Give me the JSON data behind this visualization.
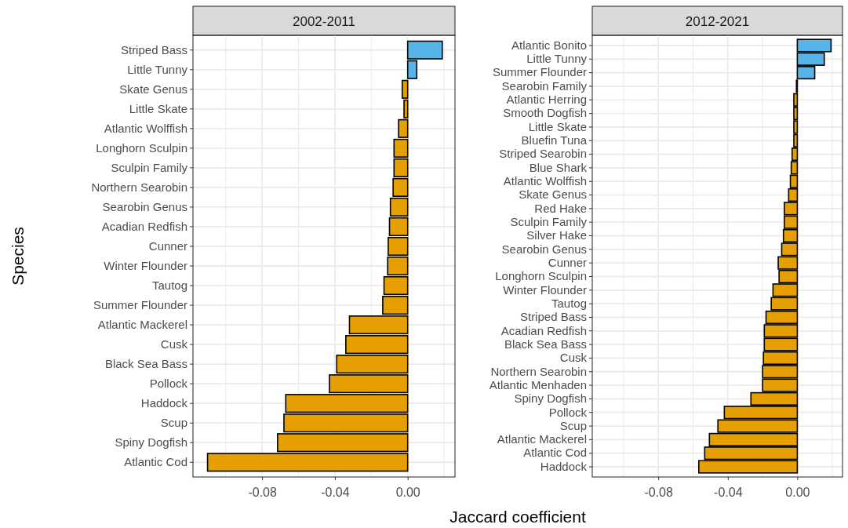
{
  "chart_data": [
    {
      "type": "bar",
      "orientation": "horizontal",
      "title": "2002-2011",
      "xlabel": "Jaccard coefficient",
      "ylabel": "Species",
      "categories": [
        "Striped Bass",
        "Little Tunny",
        "Skate Genus",
        "Little Skate",
        "Atlantic Wolffish",
        "Longhorn Sculpin",
        "Sculpin Family",
        "Northern Searobin",
        "Searobin Genus",
        "Acadian Redfish",
        "Cunner",
        "Winter Flounder",
        "Tautog",
        "Summer Flounder",
        "Atlantic Mackerel",
        "Cusk",
        "Black Sea Bass",
        "Pollock",
        "Haddock",
        "Scup",
        "Spiny Dogfish",
        "Atlantic Cod"
      ],
      "values": [
        0.019,
        0.005,
        -0.003,
        -0.002,
        -0.005,
        -0.0075,
        -0.0075,
        -0.008,
        -0.0095,
        -0.01,
        -0.0107,
        -0.011,
        -0.013,
        -0.0137,
        -0.032,
        -0.034,
        -0.039,
        -0.043,
        -0.067,
        -0.068,
        -0.0715,
        -0.11
      ],
      "colors": [
        "#56b4e9",
        "#56b4e9",
        "#e69f00",
        "#e69f00",
        "#e69f00",
        "#e69f00",
        "#e69f00",
        "#e69f00",
        "#e69f00",
        "#e69f00",
        "#e69f00",
        "#e69f00",
        "#e69f00",
        "#e69f00",
        "#e69f00",
        "#e69f00",
        "#e69f00",
        "#e69f00",
        "#e69f00",
        "#e69f00",
        "#e69f00",
        "#e69f00"
      ],
      "xlim": [
        -0.118,
        0.026
      ],
      "xticks": [
        {
          "value": -0.1,
          "label": null
        },
        {
          "value": -0.08,
          "label": "-0.08"
        },
        {
          "value": -0.06,
          "label": null
        },
        {
          "value": -0.04,
          "label": "-0.04"
        },
        {
          "value": -0.02,
          "label": null
        },
        {
          "value": 0,
          "label": "0.00"
        },
        {
          "value": 0.02,
          "label": null
        }
      ],
      "grid": true
    },
    {
      "type": "bar",
      "orientation": "horizontal",
      "title": "2012-2021",
      "categories": [
        "Atlantic Bonito",
        "Little Tunny",
        "Summer Flounder",
        "Searobin Family",
        "Atlantic Herring",
        "Smooth Dogfish",
        "Little Skate",
        "Bluefin Tuna",
        "Striped Searobin",
        "Blue Shark",
        "Atlantic Wolffish",
        "Skate Genus",
        "Red Hake",
        "Sculpin Family",
        "Silver Hake",
        "Searobin Genus",
        "Cunner",
        "Longhorn Sculpin",
        "Winter Flounder",
        "Tautog",
        "Striped Bass",
        "Acadian Redfish",
        "Black Sea Bass",
        "Cusk",
        "Northern Searobin",
        "Atlantic Menhaden",
        "Spiny Dogfish",
        "Pollock",
        "Scup",
        "Atlantic Mackerel",
        "Atlantic Cod",
        "Haddock"
      ],
      "values": [
        0.0194,
        0.0155,
        0.01,
        -0.0005,
        -0.002,
        -0.002,
        -0.002,
        -0.002,
        -0.003,
        -0.0035,
        -0.004,
        -0.005,
        -0.0075,
        -0.0075,
        -0.008,
        -0.009,
        -0.011,
        -0.0105,
        -0.014,
        -0.015,
        -0.018,
        -0.019,
        -0.019,
        -0.0195,
        -0.02,
        -0.02,
        -0.0267,
        -0.042,
        -0.0457,
        -0.0506,
        -0.0533,
        -0.0567
      ],
      "colors": [
        "#56b4e9",
        "#56b4e9",
        "#56b4e9",
        "#e69f00",
        "#e69f00",
        "#e69f00",
        "#e69f00",
        "#e69f00",
        "#e69f00",
        "#e69f00",
        "#e69f00",
        "#e69f00",
        "#e69f00",
        "#e69f00",
        "#e69f00",
        "#e69f00",
        "#e69f00",
        "#e69f00",
        "#e69f00",
        "#e69f00",
        "#e69f00",
        "#e69f00",
        "#e69f00",
        "#e69f00",
        "#e69f00",
        "#e69f00",
        "#e69f00",
        "#e69f00",
        "#e69f00",
        "#e69f00",
        "#e69f00",
        "#e69f00"
      ],
      "xlim": [
        -0.118,
        0.026
      ],
      "xticks": [
        {
          "value": -0.1,
          "label": null
        },
        {
          "value": -0.08,
          "label": "-0.08"
        },
        {
          "value": -0.06,
          "label": null
        },
        {
          "value": -0.04,
          "label": "-0.04"
        },
        {
          "value": -0.02,
          "label": null
        },
        {
          "value": 0,
          "label": "0.00"
        },
        {
          "value": 0.02,
          "label": null
        }
      ],
      "grid": true
    }
  ]
}
